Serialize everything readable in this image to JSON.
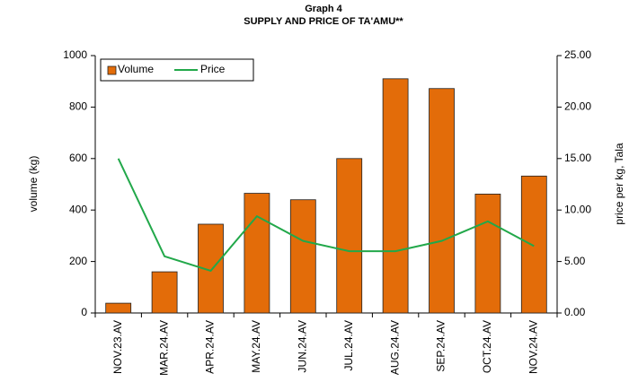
{
  "chart_data": {
    "type": "bar",
    "title": "Graph 4",
    "subtitle": "SUPPLY AND PRICE OF TA'AMU**",
    "y_label": "volume (kg)",
    "y2_label": "price per kg, Tala",
    "categories": [
      "NOV.23.AV",
      "MAR.24.AV",
      "APR.24.AV",
      "MAY.24.AV",
      "JUN.24.AV",
      "JUL.24.AV",
      "AUG.24.AV",
      "SEP.24.AV",
      "OCT.24.AV",
      "NOV.24.AV"
    ],
    "series": [
      {
        "name": "Volume",
        "color": "#e36c09",
        "type": "bar",
        "values": [
          38,
          160,
          345,
          465,
          440,
          600,
          910,
          872,
          462,
          532
        ]
      },
      {
        "name": "Price",
        "color": "#22a84a",
        "type": "line",
        "axis": "y2",
        "values": [
          15.0,
          5.5,
          4.1,
          9.4,
          7.0,
          6.0,
          6.0,
          7.0,
          8.9,
          6.5
        ]
      }
    ],
    "ylim": [
      0,
      1000
    ],
    "yticks": [
      0,
      200,
      400,
      600,
      800,
      1000
    ],
    "y2lim": [
      0,
      25
    ],
    "y2ticks": [
      {
        "value": 0,
        "label": "0.00"
      },
      {
        "value": 5,
        "label": "5.00"
      },
      {
        "value": 10,
        "label": "10.00"
      },
      {
        "value": 15,
        "label": "15.00"
      },
      {
        "value": 20,
        "label": "20.00"
      },
      {
        "value": 25,
        "label": "25.00"
      }
    ],
    "legend": "upper-left",
    "grid": false
  }
}
